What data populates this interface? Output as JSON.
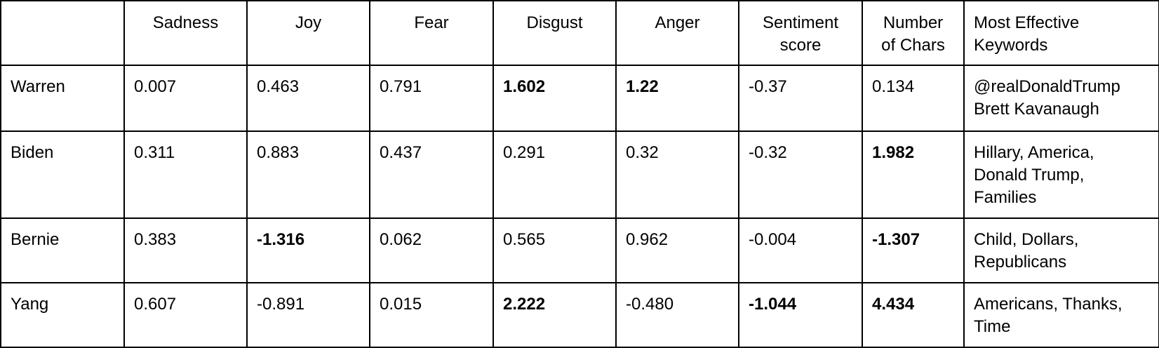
{
  "table": {
    "headers": {
      "corner": "",
      "sadness": "Sadness",
      "joy": "Joy",
      "fear": "Fear",
      "disgust": "Disgust",
      "anger": "Anger",
      "sentiment_line1": "Sentiment",
      "sentiment_line2": "score",
      "chars_line1": "Number",
      "chars_line2": "of Chars",
      "keywords_line1": "Most Effective",
      "keywords_line2": "Keywords"
    },
    "rows": [
      {
        "name": "Warren",
        "sadness": "0.007",
        "joy": "0.463",
        "fear": "0.791",
        "disgust": "1.602",
        "anger": "1.22",
        "sentiment": "-0.37",
        "chars": "0.134",
        "keywords": [
          "@realDonaldTrump",
          "Brett Kavanaugh"
        ]
      },
      {
        "name": "Biden",
        "sadness": "0.311",
        "joy": "0.883",
        "fear": "0.437",
        "disgust": "0.291",
        "anger": "0.32",
        "sentiment": "-0.32",
        "chars": "1.982",
        "keywords": [
          "Hillary, America,",
          "Donald Trump,",
          "Families"
        ]
      },
      {
        "name": "Bernie",
        "sadness": "0.383",
        "joy": "-1.316",
        "fear": "0.062",
        "disgust": "0.565",
        "anger": "0.962",
        "sentiment": "-0.004",
        "chars": "-1.307",
        "keywords": [
          "Child, Dollars,",
          "Republicans"
        ]
      },
      {
        "name": "Yang",
        "sadness": "0.607",
        "joy": "-0.891",
        "fear": "0.015",
        "disgust": "2.222",
        "anger": "-0.480",
        "sentiment": "-1.044",
        "chars": "4.434",
        "keywords": [
          "Americans, Thanks,",
          "Time"
        ]
      }
    ]
  }
}
